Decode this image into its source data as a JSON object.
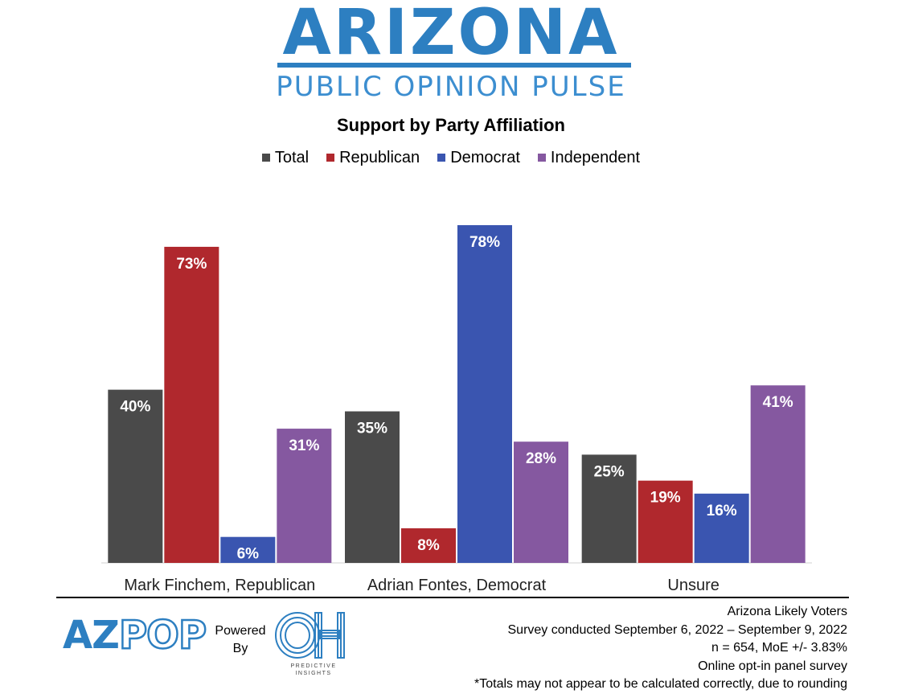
{
  "header": {
    "logo_title": "ARIZONA",
    "logo_subtitle": "PUBLIC OPINION PULSE"
  },
  "chart_data": {
    "type": "bar",
    "title": "Support by Party Affiliation",
    "categories": [
      "Mark Finchem, Republican",
      "Adrian Fontes, Democrat",
      "Unsure"
    ],
    "series": [
      {
        "name": "Total",
        "color": "#4a4a4a",
        "values": [
          40,
          35,
          25
        ]
      },
      {
        "name": "Republican",
        "color": "#b0282d",
        "values": [
          73,
          8,
          19
        ]
      },
      {
        "name": "Democrat",
        "color": "#3a55b0",
        "values": [
          6,
          78,
          16
        ]
      },
      {
        "name": "Independent",
        "color": "#8558a0",
        "values": [
          31,
          28,
          41
        ]
      }
    ],
    "value_suffix": "%",
    "ylim": [
      0,
      78
    ],
    "grid": false,
    "legend_position": "top-center"
  },
  "footer": {
    "notes": [
      "Arizona Likely Voters",
      "Survey conducted September 6, 2022 – September 9, 2022",
      "n = 654, MoE +/- 3.83%",
      "Online opt-in panel survey",
      "*Totals may not appear to be calculated correctly, due to rounding"
    ],
    "brand_az": "AZ",
    "brand_pop": "POP",
    "powered_by_line1": "Powered",
    "powered_by_line2": "By",
    "partner_mark": "OH",
    "partner_caption_line1": "PREDICTIVE",
    "partner_caption_line2": "INSIGHTS"
  }
}
